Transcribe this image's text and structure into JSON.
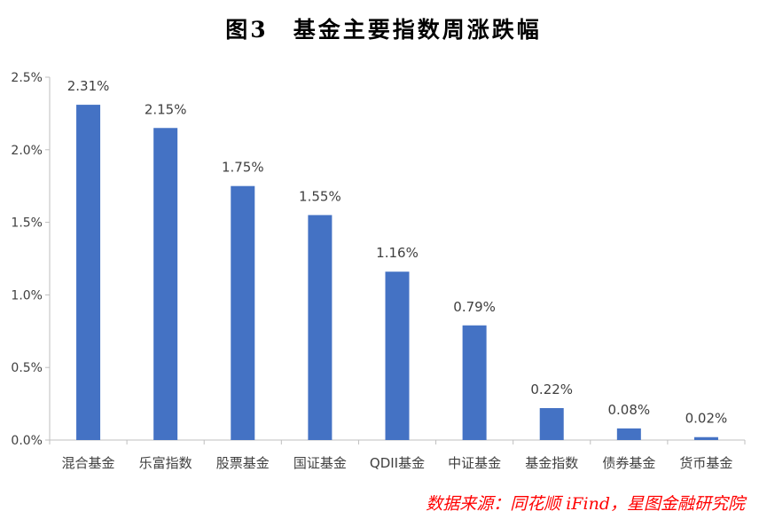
{
  "title": "图3　基金主要指数周涨跌幅",
  "source": "数据来源：同花顺 iFind，星图金融研究院",
  "colors": {
    "bar": "#4472c4",
    "axis": "#bfbfbf",
    "text": "#404040",
    "source": "#ff0000"
  },
  "chart_data": {
    "type": "bar",
    "categories": [
      "混合基金",
      "乐富指数",
      "股票基金",
      "国证基金",
      "QDII基金",
      "中证基金",
      "基金指数",
      "债券基金",
      "货币基金"
    ],
    "values": [
      2.31,
      2.15,
      1.75,
      1.55,
      1.16,
      0.79,
      0.22,
      0.08,
      0.02
    ],
    "value_labels": [
      "2.31%",
      "2.15%",
      "1.75%",
      "1.55%",
      "1.16%",
      "0.79%",
      "0.22%",
      "0.08%",
      "0.02%"
    ],
    "y_ticks": [
      0,
      0.5,
      1.0,
      1.5,
      2.0,
      2.5
    ],
    "y_tick_labels": [
      "0.0%",
      "0.5%",
      "1.0%",
      "1.5%",
      "2.0%",
      "2.5%"
    ],
    "ylim": [
      0,
      2.5
    ],
    "grid": false,
    "legend": "none"
  }
}
